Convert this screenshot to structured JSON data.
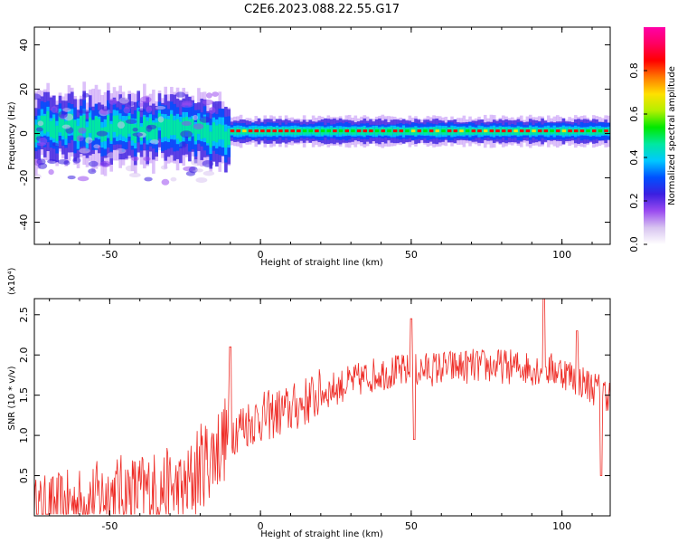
{
  "figure_title": "C2E6.2023.088.22.55.G17",
  "colors": {
    "snr_line": "#ee2a24",
    "axis": "#000000",
    "colormap": [
      "#ffffff",
      "#d8c4f0",
      "#9a4bf0",
      "#3b1fe0",
      "#0050ff",
      "#00c8ff",
      "#00e8a0",
      "#00e800",
      "#b4f000",
      "#ffe000",
      "#ff7a00",
      "#ff0000",
      "#ff0060",
      "#ff00a8"
    ]
  },
  "chart_data": [
    {
      "type": "heatmap",
      "title": "",
      "xlabel": "Height of straight line (km)",
      "ylabel": "Frequency (Hz)",
      "xlim": [
        -75,
        116
      ],
      "ylim": [
        -50,
        48
      ],
      "xticks": [
        -50,
        0,
        50,
        100
      ],
      "yticks": [
        -40,
        -20,
        0,
        20,
        40
      ],
      "ytick_labels": [
        "-40",
        "-20",
        "0",
        "20",
        "40"
      ],
      "grid": false,
      "colorbar": {
        "label": "Normalized spectral amplitude",
        "range": [
          0,
          1
        ],
        "ticks": [
          0.0,
          0.2,
          0.4,
          0.6,
          0.8
        ],
        "tick_labels": [
          "0.0",
          "0.2",
          "0.4",
          "0.6",
          "0.8"
        ]
      },
      "ridge": {
        "x_segments": [
          [
            -75,
            -50,
            -35,
            -28,
            -20,
            -15,
            -10,
            0,
            20,
            50,
            80,
            116
          ]
        ],
        "center_hz": [
          3,
          2,
          3,
          3,
          0,
          -2,
          1,
          1,
          1,
          1,
          1,
          1
        ]
      }
    },
    {
      "type": "line",
      "title": "",
      "xlabel": "Height of straight line (km)",
      "ylabel": "SNR (10 * v/v)",
      "y_multiplier_label": "(x10⁴)",
      "xlim": [
        -75,
        116
      ],
      "ylim": [
        0,
        2.7
      ],
      "xticks": [
        -50,
        0,
        50,
        100
      ],
      "yticks": [
        0.5,
        1.0,
        1.5,
        2.0,
        2.5
      ],
      "ytick_labels": [
        "0.5",
        "1.0",
        "1.5",
        "2.0",
        "2.5"
      ],
      "grid": false,
      "series": [
        {
          "x": [
            -75,
            -60,
            -50,
            -40,
            -30,
            -25,
            -20,
            -15,
            -10,
            -5,
            0,
            10,
            20,
            30,
            40,
            50,
            60,
            70,
            80,
            90,
            100,
            110,
            116
          ],
          "y": [
            0.1,
            0.18,
            0.28,
            0.3,
            0.34,
            0.3,
            0.62,
            0.8,
            1.05,
            1.15,
            1.22,
            1.32,
            1.52,
            1.66,
            1.78,
            1.8,
            1.84,
            1.86,
            1.86,
            1.84,
            1.8,
            1.6,
            1.5
          ],
          "spikes": [
            {
              "x": -10,
              "y": 2.1
            },
            {
              "x": 50,
              "y": 2.45
            },
            {
              "x": 51,
              "y": 0.95
            },
            {
              "x": 94,
              "y": 2.7
            },
            {
              "x": 105,
              "y": 2.3
            },
            {
              "x": 113,
              "y": 0.5
            }
          ]
        }
      ]
    }
  ]
}
